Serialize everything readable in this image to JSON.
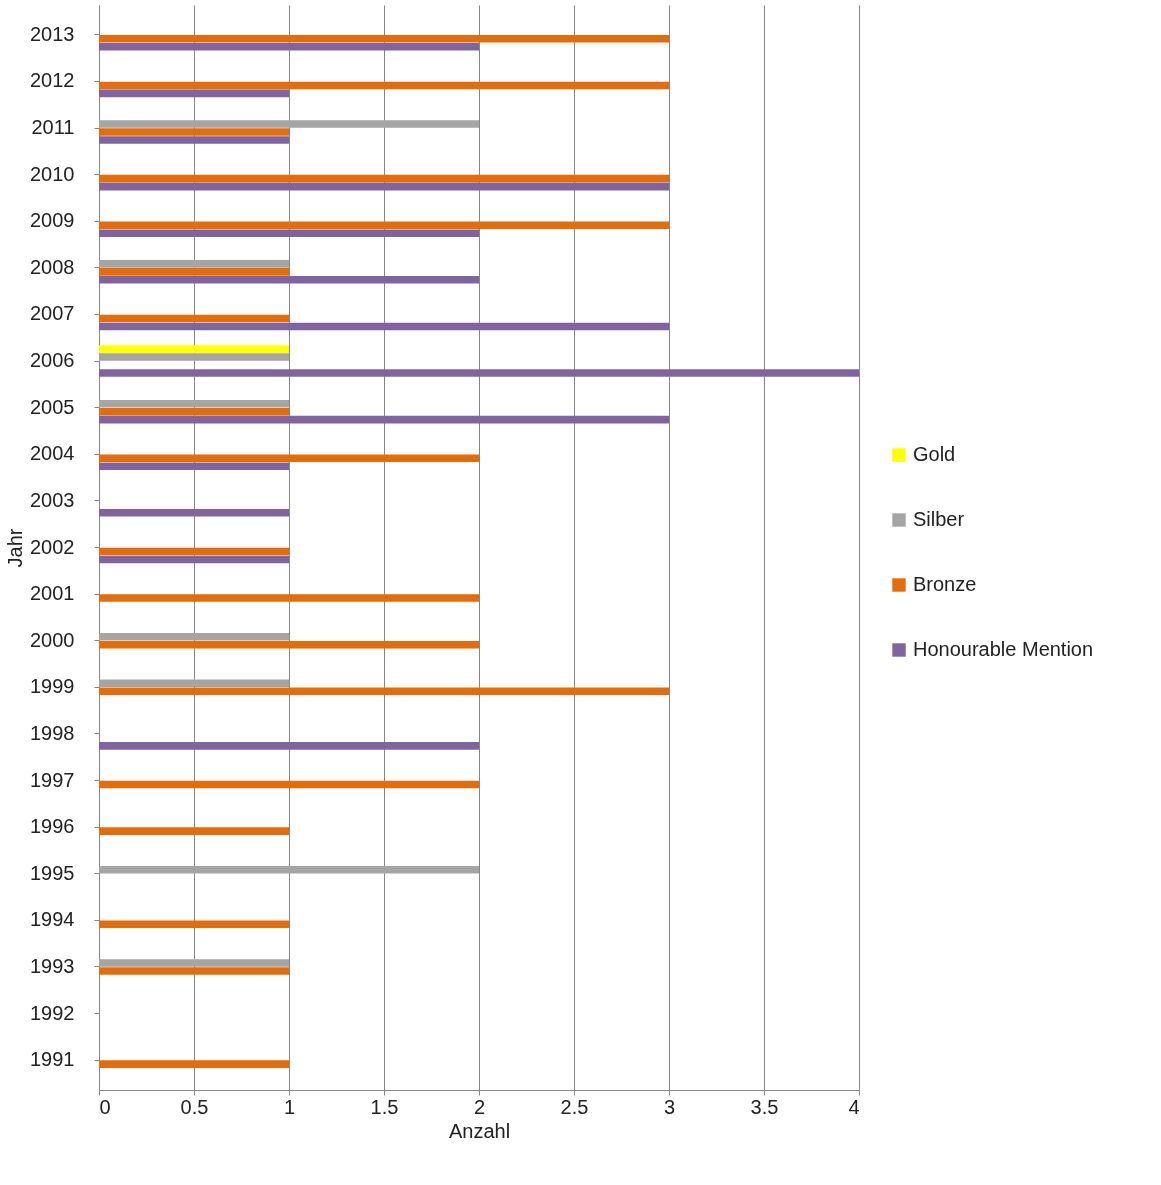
{
  "chart_data": {
    "type": "bar",
    "orientation": "horizontal",
    "xlabel": "Anzahl",
    "ylabel": "Jahr",
    "categories": [
      "2013",
      "2012",
      "2011",
      "2010",
      "2009",
      "2008",
      "2007",
      "2006",
      "2005",
      "2004",
      "2003",
      "2002",
      "2001",
      "2000",
      "1999",
      "1998",
      "1997",
      "1996",
      "1995",
      "1994",
      "1993",
      "1992",
      "1991"
    ],
    "series": [
      {
        "name": "Gold",
        "color": "#ffff00",
        "values": [
          0,
          0,
          0,
          0,
          0,
          0,
          0,
          1,
          0,
          0,
          0,
          0,
          0,
          0,
          0,
          0,
          0,
          0,
          0,
          0,
          0,
          0,
          0
        ]
      },
      {
        "name": "Silber",
        "color": "#a5a5a5",
        "values": [
          0,
          0,
          2,
          0,
          0,
          1,
          0,
          1,
          1,
          0,
          0,
          0,
          0,
          1,
          1,
          0,
          0,
          0,
          2,
          0,
          1,
          0,
          0
        ]
      },
      {
        "name": "Bronze",
        "color": "#e46c0a",
        "values": [
          3,
          3,
          1,
          3,
          3,
          1,
          1,
          0,
          1,
          2,
          0,
          1,
          2,
          2,
          3,
          0,
          2,
          1,
          0,
          1,
          1,
          0,
          1
        ]
      },
      {
        "name": "Honourable Mention",
        "color": "#8064a2",
        "values": [
          2,
          1,
          1,
          3,
          2,
          2,
          3,
          4,
          3,
          1,
          1,
          1,
          0,
          0,
          0,
          2,
          0,
          0,
          0,
          0,
          0,
          0,
          0
        ]
      }
    ],
    "xlim": [
      0,
      4
    ],
    "xticks": [
      0,
      0.5,
      1,
      1.5,
      2,
      2.5,
      3,
      3.5,
      4
    ],
    "grid": "x",
    "legend": "right"
  }
}
